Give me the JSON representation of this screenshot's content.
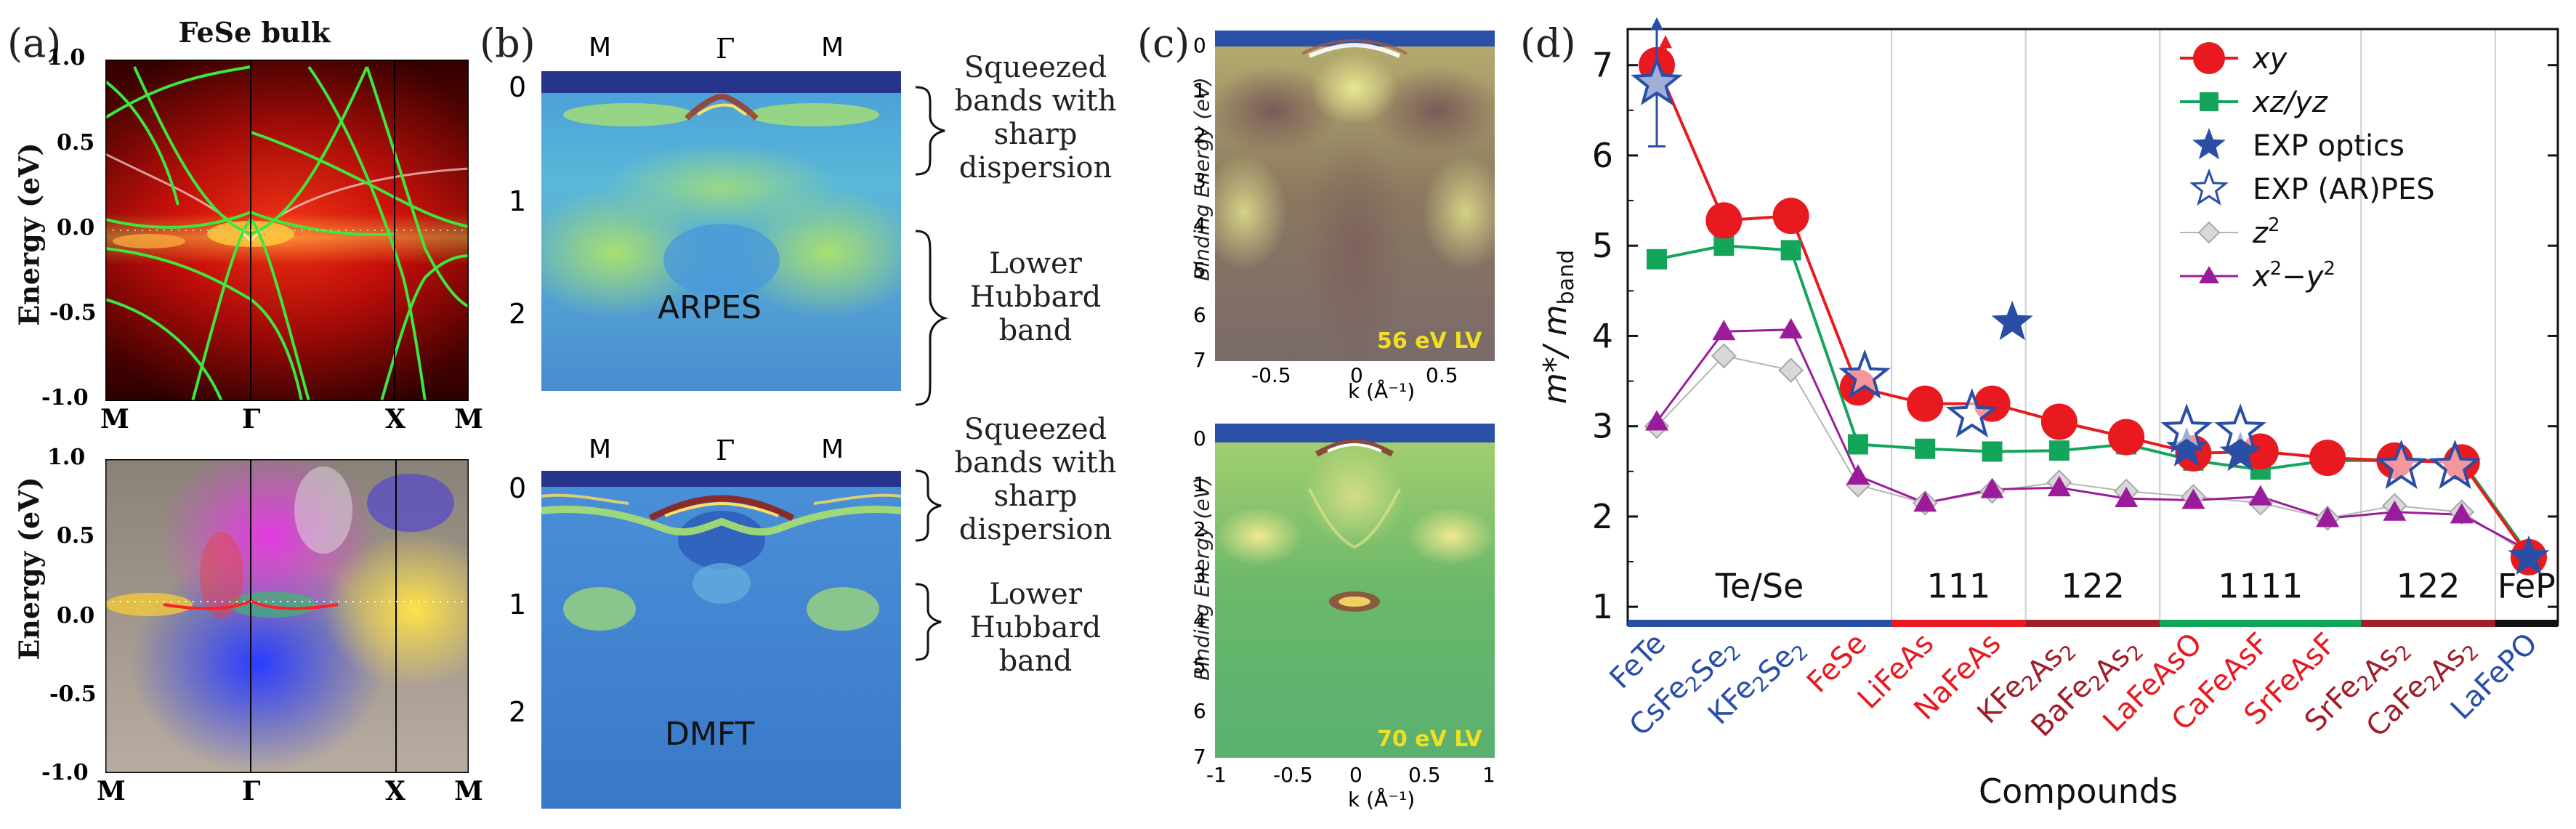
{
  "panels": {
    "a": {
      "label": "(a)",
      "title": "FeSe bulk",
      "ylabel": "Energy (eV)",
      "yticks": [
        "1.0",
        "0.5",
        "0.0",
        "-0.5",
        "-1.0"
      ],
      "kpoints": [
        "M",
        "Γ",
        "X",
        "M"
      ]
    },
    "b": {
      "label": "(b)",
      "kpoints": [
        "M",
        "Γ",
        "M"
      ],
      "yticks": [
        "0",
        "1",
        "2"
      ],
      "arpes_label": "ARPES",
      "dmft_label": "DMFT",
      "annot_squeezed": [
        "Squeezed",
        "bands with",
        "sharp",
        "dispersion"
      ],
      "annot_hubbard": [
        "Lower",
        "Hubbard",
        "band"
      ]
    },
    "c": {
      "label": "(c)",
      "ylabel": "Binding Energy (eV)",
      "xlabel": "k (Å⁻¹)",
      "yticks": [
        "0",
        "1",
        "2",
        "3",
        "4",
        "5",
        "6",
        "7"
      ],
      "xticks_top": [
        "-0.5",
        "0",
        "0.5"
      ],
      "xticks_bottom": [
        "-1",
        "-0.5",
        "0",
        "0.5",
        "1"
      ],
      "top_tag": "56 eV LV",
      "bottom_tag": "70 eV LV"
    },
    "d": {
      "label": "(d)"
    }
  },
  "colors": {
    "xy": "#e8191f",
    "xzyz": "#13a65a",
    "exp": "#2a4ea6",
    "z2": "#b5b5b5",
    "x2y2": "#9a1c9a",
    "blue_label": "#2a4ea6",
    "red_label": "#e8191f",
    "darkred_label": "#a01d2a"
  },
  "chart_data": {
    "type": "line",
    "title": "",
    "xlabel": "Compounds",
    "ylabel": "m*/ m_band",
    "ylim": [
      0.8,
      7.4
    ],
    "yticks": [
      1,
      2,
      3,
      4,
      5,
      6,
      7
    ],
    "categories": [
      "FeTe",
      "CsFe2Se2",
      "KFe2Se2",
      "FeSe",
      "LiFeAs",
      "NaFeAs",
      "KFe2As2",
      "BaFe2As2",
      "LaFeAsO",
      "CaFeAsF",
      "SrFeAsF",
      "SrFe2As2",
      "CaFe2As2",
      "LaFePO"
    ],
    "category_colors": [
      "blue",
      "blue",
      "blue",
      "red",
      "red",
      "red",
      "darkred",
      "darkred",
      "red",
      "red",
      "red",
      "darkred",
      "darkred",
      "blue"
    ],
    "series": [
      {
        "name": "xy",
        "marker": "circle",
        "values": [
          7.0,
          5.28,
          5.33,
          3.43,
          3.25,
          3.25,
          3.05,
          2.88,
          2.7,
          2.72,
          2.65,
          2.62,
          2.6,
          1.55
        ]
      },
      {
        "name": "xz/yz",
        "marker": "square",
        "values": [
          4.85,
          5.0,
          4.95,
          2.8,
          2.75,
          2.72,
          2.73,
          2.8,
          2.62,
          2.52,
          2.62,
          2.62,
          2.62,
          1.58
        ]
      },
      {
        "name": "EXP optics",
        "marker": "star-filled",
        "points": [
          [
            0,
            6.8,
            0.7
          ],
          [
            5.3,
            4.15,
            0
          ],
          [
            7.9,
            2.75,
            0
          ],
          [
            8.7,
            2.7,
            0
          ],
          [
            13.0,
            1.55,
            0
          ]
        ]
      },
      {
        "name": "EXP (AR)PES",
        "marker": "star-open",
        "points": [
          [
            0,
            6.8,
            0
          ],
          [
            3.1,
            3.55,
            0
          ],
          [
            4.7,
            3.12,
            0
          ],
          [
            7.9,
            2.95,
            0
          ],
          [
            8.7,
            2.95,
            0
          ],
          [
            11.1,
            2.55,
            0
          ],
          [
            11.9,
            2.55,
            0
          ]
        ]
      },
      {
        "name": "z²",
        "marker": "diamond",
        "values": [
          3.0,
          3.78,
          3.62,
          2.35,
          2.15,
          2.28,
          2.38,
          2.28,
          2.22,
          2.15,
          1.98,
          2.12,
          2.05,
          1.58
        ]
      },
      {
        "name": "x²−y²",
        "marker": "triangle",
        "values": [
          3.05,
          4.05,
          4.07,
          2.45,
          2.15,
          2.3,
          2.32,
          2.2,
          2.18,
          2.22,
          1.98,
          2.05,
          2.02,
          1.62
        ]
      }
    ],
    "arrows": [
      {
        "at": 0,
        "from": 7.0,
        "to": 7.3
      }
    ],
    "legend_labels": [
      "xy",
      "xz/yz",
      "EXP optics",
      "EXP (AR)PES",
      "z",
      "x",
      "−y"
    ],
    "legend_placement": "top-right",
    "groups": [
      {
        "label": "Te/Se",
        "from": -0.5,
        "to": 3.5,
        "color": "#2a4ea6"
      },
      {
        "label": "111",
        "from": 3.5,
        "to": 5.5,
        "color": "#e8191f"
      },
      {
        "label": "122",
        "from": 5.5,
        "to": 7.5,
        "color": "#a01d2a"
      },
      {
        "label": "1111",
        "from": 7.5,
        "to": 10.5,
        "color": "#13a65a"
      },
      {
        "label": "122",
        "from": 10.5,
        "to": 12.5,
        "color": "#a01d2a"
      },
      {
        "label": "FeP",
        "from": 12.5,
        "to": 13.5,
        "color": "#111111"
      }
    ]
  }
}
